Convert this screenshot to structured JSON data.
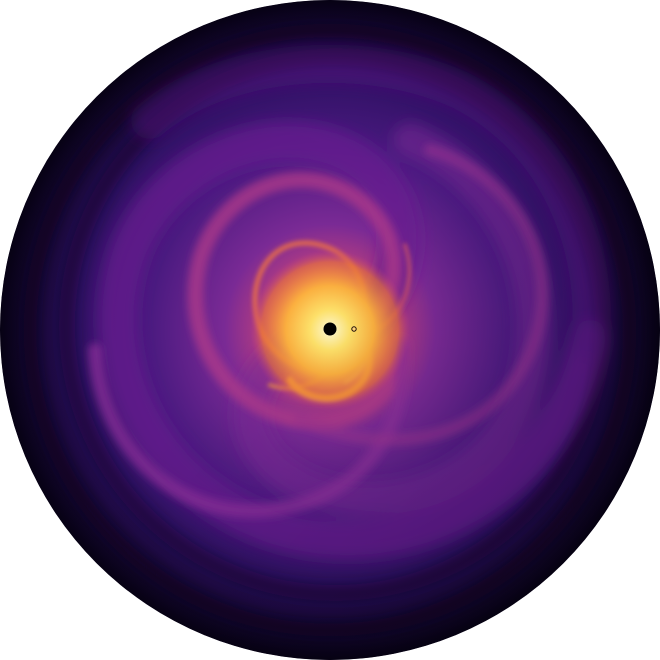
{
  "image": {
    "subject": "accretion-disk-spiral-simulation",
    "colormap": "inferno",
    "colors": {
      "background": "#ffffff",
      "outer_dark": "#0d0420",
      "disk_base": "#2a0c5e",
      "arm_purple": "#8a2aa0",
      "arm_magenta": "#b8387e",
      "arm_orange": "#f07a2a",
      "core_yellow": "#ffd84a",
      "core_white": "#fffbd0",
      "central_object": "#000000",
      "companion_ring": "#2a1a0a"
    },
    "spiral_arms": 2,
    "rotation": "clockwise-outward"
  }
}
